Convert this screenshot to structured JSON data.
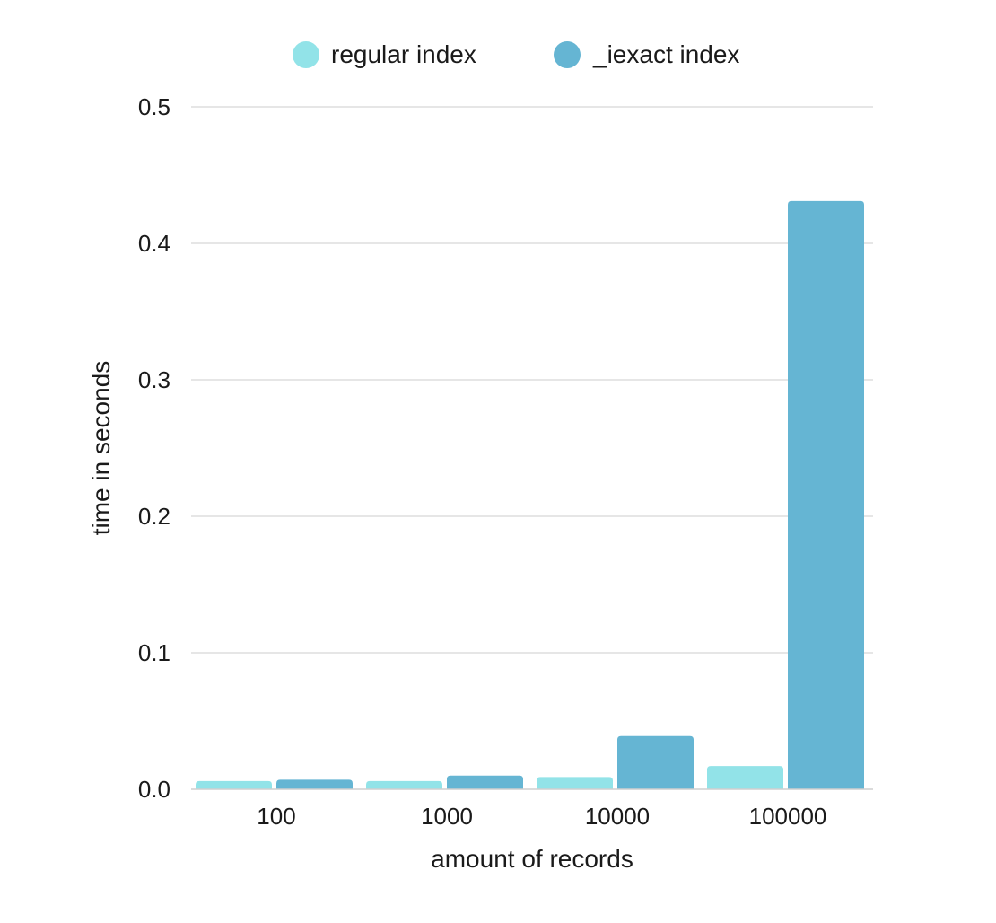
{
  "chart_data": {
    "type": "bar",
    "categories": [
      "100",
      "1000",
      "10000",
      "100000"
    ],
    "series": [
      {
        "name": "regular index",
        "color": "#92e3e8",
        "values": [
          0.006,
          0.006,
          0.009,
          0.017
        ]
      },
      {
        "name": "_iexact index",
        "color": "#65b5d3",
        "values": [
          0.007,
          0.01,
          0.039,
          0.431
        ]
      }
    ],
    "xlabel": "amount of records",
    "ylabel": "time in seconds",
    "ylim": [
      0,
      0.5
    ],
    "yticks": [
      "0.0",
      "0.1",
      "0.2",
      "0.3",
      "0.4",
      "0.5"
    ],
    "grid": true,
    "legend_position": "top-center"
  }
}
